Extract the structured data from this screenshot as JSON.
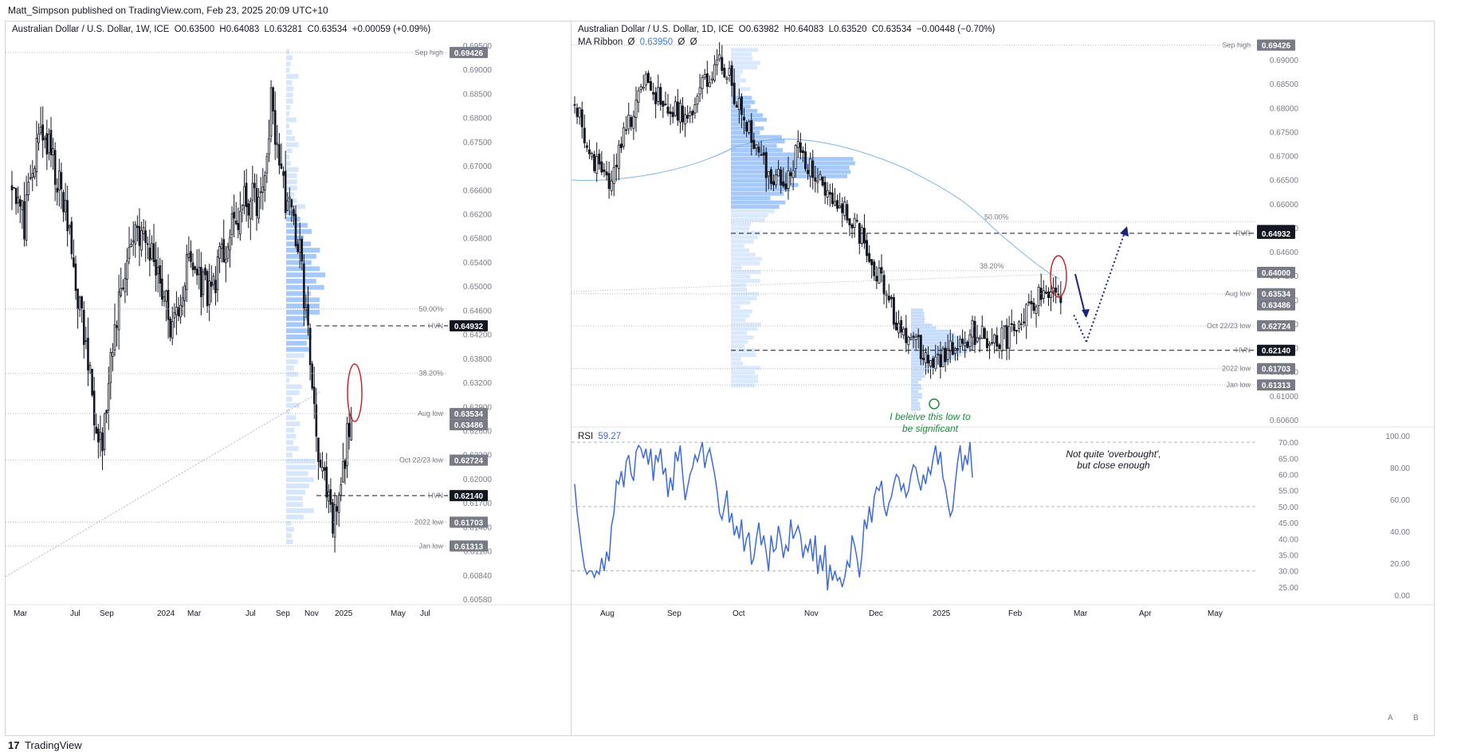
{
  "header": {
    "published": "Matt_Simpson published on TradingView.com, Feb 23, 2025 20:09 UTC+10"
  },
  "footer": {
    "logo_glyph": "17",
    "brand": "TradingView",
    "btn_a": "A",
    "btn_b": "B"
  },
  "colors": {
    "up": "#ffffff",
    "down": "#131722",
    "volume_profile": "#5b9cf6",
    "ma": "#7fb3e8",
    "rsi": "#3e6bd4",
    "annotation_red": "#c62828",
    "annotation_green": "#1b8a3a",
    "arrow_navy": "#1a237e"
  },
  "left": {
    "legend": {
      "symbol": "Australian Dollar / U.S. Dollar, 1W, ICE",
      "o": "O0.63500",
      "h": "H0.64083",
      "l": "L0.63281",
      "c": "C0.63534",
      "chg": "+0.00059 (+0.09%)"
    },
    "time_labels": [
      "Mar",
      "Jul",
      "Sep",
      "2024",
      "Mar",
      "Jul",
      "Sep",
      "Nov",
      "2025",
      "May",
      "Jul"
    ],
    "price_ticks": [
      "0.69500",
      "0.69000",
      "0.68500",
      "0.68000",
      "0.67500",
      "0.67000",
      "0.66600",
      "0.66200",
      "0.65800",
      "0.65400",
      "0.65000",
      "0.64600",
      "0.64200",
      "0.63800",
      "0.63200",
      "0.62900",
      "0.62600",
      "0.62300",
      "0.62000",
      "0.61700",
      "0.61400",
      "0.61100",
      "0.60840",
      "0.60580"
    ]
  },
  "right": {
    "legend": {
      "symbol": "Australian Dollar / U.S. Dollar, 1D, ICE",
      "o": "O0.63982",
      "h": "H0.64083",
      "l": "L0.63520",
      "c": "C0.63534",
      "chg": "−0.00448 (−0.70%)"
    },
    "ma_legend": {
      "name": "MA Ribbon",
      "a": "Ø",
      "value": "0.63950",
      "b": "Ø",
      "c": "Ø"
    },
    "rsi_legend": {
      "name": "RSI",
      "value": "59.27"
    },
    "time_labels": [
      "Aug",
      "Sep",
      "Oct",
      "Nov",
      "Dec",
      "2025",
      "Feb",
      "Mar",
      "Apr",
      "May"
    ],
    "price_ticks": [
      "0.69000",
      "0.68500",
      "0.68000",
      "0.67500",
      "0.67000",
      "0.66500",
      "0.66000",
      "0.65500",
      "0.64600",
      "0.64200",
      "0.63800",
      "0.63000",
      "0.62600",
      "0.61800",
      "0.61000",
      "0.60600"
    ],
    "rsi_ticks_left": [
      "70.00",
      "65.00",
      "60.00",
      "55.00",
      "50.00",
      "45.00",
      "40.00",
      "35.00",
      "30.00",
      "25.00"
    ],
    "rsi_ticks_right": [
      "100.00",
      "80.00",
      "60.00",
      "40.00",
      "20.00",
      "0.00"
    ]
  },
  "annotations": {
    "low_note_1": "I beleive this low to",
    "low_note_2": "be significant",
    "ob_note_1": "Not quite 'overbought',",
    "ob_note_2": "but close enough",
    "fib_50": "50.00%",
    "fib_382": "38.20%"
  },
  "chart_data": [
    {
      "type": "candlestick",
      "title": "Australian Dollar / U.S. Dollar, 1W, ICE",
      "ylim": [
        0.6044,
        0.6962
      ],
      "levels": [
        {
          "label": "Sep high",
          "value": 0.69426,
          "tag": "0.69426"
        },
        {
          "label": "50.00%",
          "value": 0.6521
        },
        {
          "label": "HVN",
          "value": 0.64932,
          "tag": "0.64932"
        },
        {
          "label": "38.20%",
          "value": 0.6415
        },
        {
          "label": "Aug low",
          "value": 0.6349,
          "tag": "0.63534",
          "tag2": "0.63486"
        },
        {
          "label": "Oct 22/23 low",
          "value": 0.62724,
          "tag": "0.62724"
        },
        {
          "label": "HVN",
          "value": 0.6214,
          "tag": "0.62140"
        },
        {
          "label": "2022 low",
          "value": 0.61703,
          "tag": "0.61703"
        },
        {
          "label": "Jan low",
          "value": 0.61313,
          "tag": "0.61313"
        }
      ]
    },
    {
      "type": "candlestick",
      "title": "Australian Dollar / U.S. Dollar, 1D, ICE",
      "ylim": [
        0.6048,
        0.6957
      ],
      "indicator": "MA Ribbon 0.63950",
      "levels": [
        {
          "label": "Sep high",
          "value": 0.69426,
          "tag": "0.69426"
        },
        {
          "label": "",
          "value": 0.65,
          "tag": "0.65000"
        },
        {
          "label": "RVR",
          "value": 0.64932,
          "tag": "0.64932"
        },
        {
          "label": "",
          "value": 0.64,
          "tag": "0.64000"
        },
        {
          "label": "Aug low",
          "value": 0.6349,
          "tag": "0.63534",
          "tag2": "0.63486"
        },
        {
          "label": "Oct 22/23 low",
          "value": 0.62724,
          "tag": "0.62724"
        },
        {
          "label": "HVN",
          "value": 0.6214,
          "tag": "0.62140"
        },
        {
          "label": "2022 low",
          "value": 0.61703,
          "tag": "0.61703"
        },
        {
          "label": "Jan low",
          "value": 0.61313,
          "tag": "0.61313"
        }
      ]
    },
    {
      "type": "line",
      "title": "RSI",
      "ylim": [
        22,
        72
      ],
      "current": 59.27,
      "y": [
        57,
        48,
        42,
        36,
        31,
        29,
        30,
        30,
        28,
        30,
        29,
        34,
        30,
        36,
        33,
        44,
        48,
        58,
        57,
        61,
        56,
        64,
        66,
        60,
        58,
        67,
        69,
        68,
        65,
        68,
        63,
        68,
        58,
        66,
        64,
        68,
        60,
        62,
        53,
        59,
        55,
        67,
        64,
        69,
        60,
        52,
        56,
        60,
        62,
        66,
        64,
        67,
        70,
        62,
        66,
        68,
        64,
        60,
        55,
        48,
        46,
        50,
        55,
        45,
        48,
        41,
        44,
        40,
        46,
        36,
        40,
        42,
        32,
        34,
        40,
        45,
        38,
        41,
        36,
        30,
        41,
        36,
        37,
        44,
        40,
        34,
        38,
        36,
        46,
        40,
        42,
        44,
        41,
        34,
        38,
        36,
        40,
        33,
        41,
        29,
        35,
        30,
        38,
        24,
        32,
        27,
        30,
        27,
        28,
        25,
        28,
        33,
        31,
        41,
        38,
        34,
        28,
        35,
        46,
        43,
        50,
        45,
        53,
        56,
        55,
        58,
        50,
        47,
        51,
        53,
        57,
        60,
        59,
        55,
        57,
        53,
        55,
        60,
        63,
        62,
        58,
        55,
        60,
        57,
        62,
        60,
        65,
        69,
        63,
        67,
        59,
        56,
        51,
        47,
        49,
        57,
        64,
        69,
        61,
        66,
        63,
        70,
        59
      ]
    }
  ]
}
